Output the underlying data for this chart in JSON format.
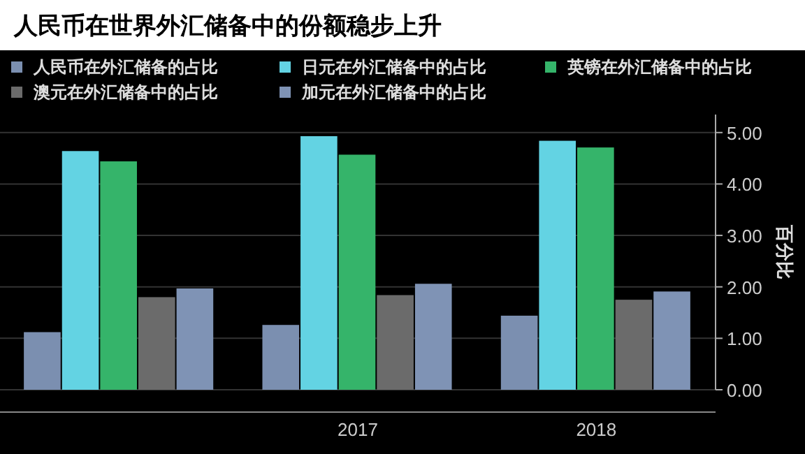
{
  "chart_data": {
    "type": "bar",
    "title": "人民币在世界外汇储备中的份额稳步上升",
    "ylabel": "百分比",
    "categories": [
      null,
      "2017",
      "2018"
    ],
    "series": [
      {
        "name": "人民币在外汇储备的占比",
        "color": "#7b8fb0",
        "values": [
          1.12,
          1.26,
          1.44
        ]
      },
      {
        "name": "日元在外汇储备中的占比",
        "color": "#63d3e3",
        "values": [
          4.64,
          4.93,
          4.84
        ]
      },
      {
        "name": "英镑在外汇储备中的占比",
        "color": "#35b46a",
        "values": [
          4.44,
          4.57,
          4.71
        ]
      },
      {
        "name": "澳元在外汇储备中的占比",
        "color": "#6b6b6b",
        "values": [
          1.8,
          1.84,
          1.75
        ]
      },
      {
        "name": "加元在外汇储备中的占比",
        "color": "#7f93b5",
        "values": [
          1.97,
          2.06,
          1.91
        ]
      }
    ],
    "ylim": [
      0,
      5.35
    ],
    "yticks": [
      {
        "value": 0,
        "label": "0.00"
      },
      {
        "value": 1,
        "label": "1.00"
      },
      {
        "value": 2,
        "label": "2.00"
      },
      {
        "value": 3,
        "label": "3.00"
      },
      {
        "value": 4,
        "label": "4.00"
      },
      {
        "value": 5,
        "label": "5.00"
      }
    ],
    "grid": "y",
    "legend": "top"
  }
}
